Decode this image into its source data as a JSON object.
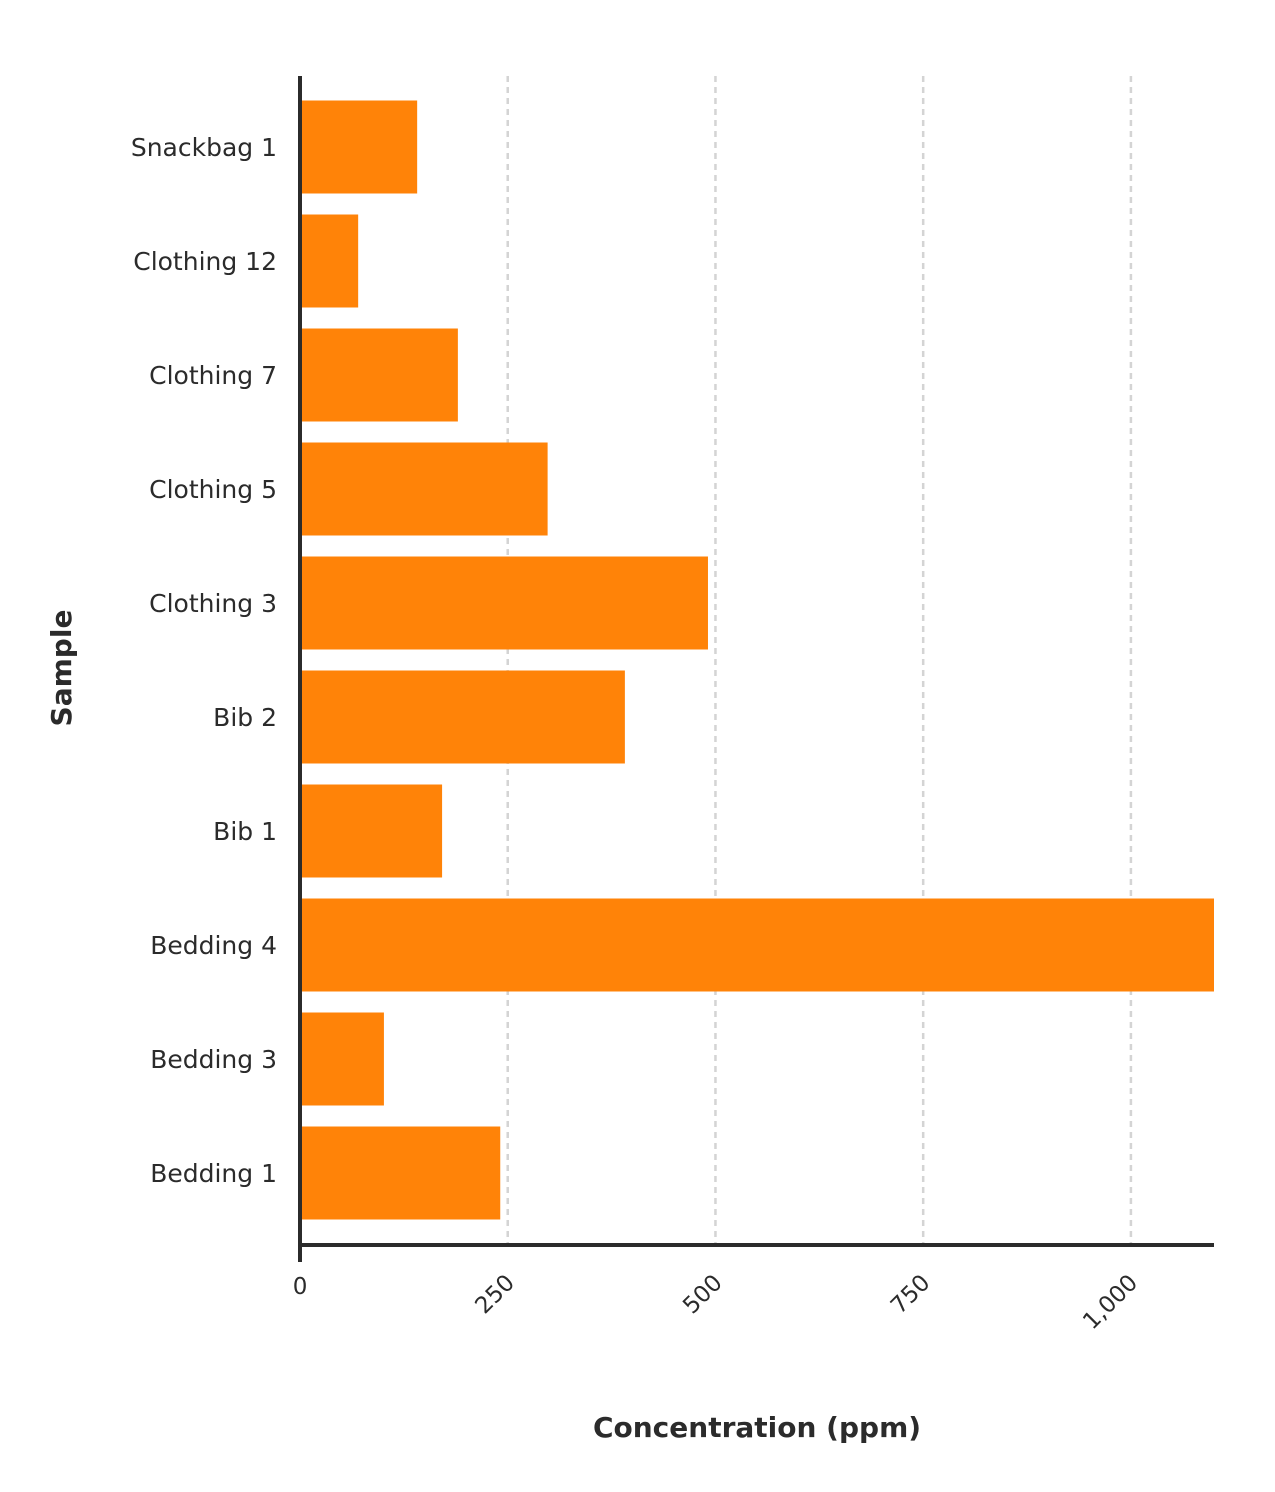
{
  "chart_data": {
    "type": "bar",
    "orientation": "horizontal",
    "title": "",
    "xlabel": "Concentration (ppm)",
    "ylabel": "Sample",
    "categories": [
      "Snackbag 1",
      "Clothing 12",
      "Clothing 7",
      "Clothing 5",
      "Clothing 3",
      "Bib 2",
      "Bib 1",
      "Bedding 4",
      "Bedding 3",
      "Bedding 1"
    ],
    "values": [
      141,
      70,
      190,
      298,
      491,
      391,
      171,
      1100,
      101,
      241
    ],
    "xlim": [
      0,
      1100
    ],
    "xticks": [
      0,
      250,
      500,
      750,
      1000
    ],
    "xtick_labels": [
      "0",
      "250",
      "500",
      "750",
      "1,000"
    ],
    "grid": "vertical dashed",
    "bar_color": "#ff8308",
    "axis_color": "#2b2b2b",
    "grid_color": "#d4d4d4"
  }
}
